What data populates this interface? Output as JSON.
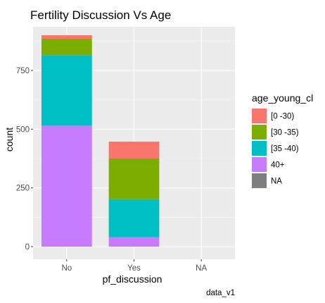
{
  "chart_data": {
    "type": "bar",
    "stacked": true,
    "title": "Fertility Discussion Vs Age",
    "xlabel": "pf_discussion",
    "ylabel": "count",
    "caption": "data_v1",
    "categories": [
      "No",
      "Yes",
      "NA"
    ],
    "ylim": [
      0,
      940
    ],
    "yticks": [
      0,
      250,
      500,
      750
    ],
    "ytick_labels": [
      "0",
      "250",
      "500",
      "750"
    ],
    "grid": true,
    "legend": {
      "title": "age_young_cl",
      "position": "right"
    },
    "series": [
      {
        "name": "[0 -30)",
        "color": "#F8766D",
        "values": [
          15,
          72,
          0
        ]
      },
      {
        "name": "[30 -35)",
        "color": "#7CAE00",
        "values": [
          70,
          173,
          0
        ]
      },
      {
        "name": "[35 -40)",
        "color": "#00BFC4",
        "values": [
          300,
          162,
          0
        ]
      },
      {
        "name": "40+",
        "color": "#C77CFF",
        "values": [
          515,
          40,
          0
        ]
      },
      {
        "name": "NA",
        "color": "#7F7F7F",
        "values": [
          0,
          0,
          0
        ]
      }
    ]
  }
}
